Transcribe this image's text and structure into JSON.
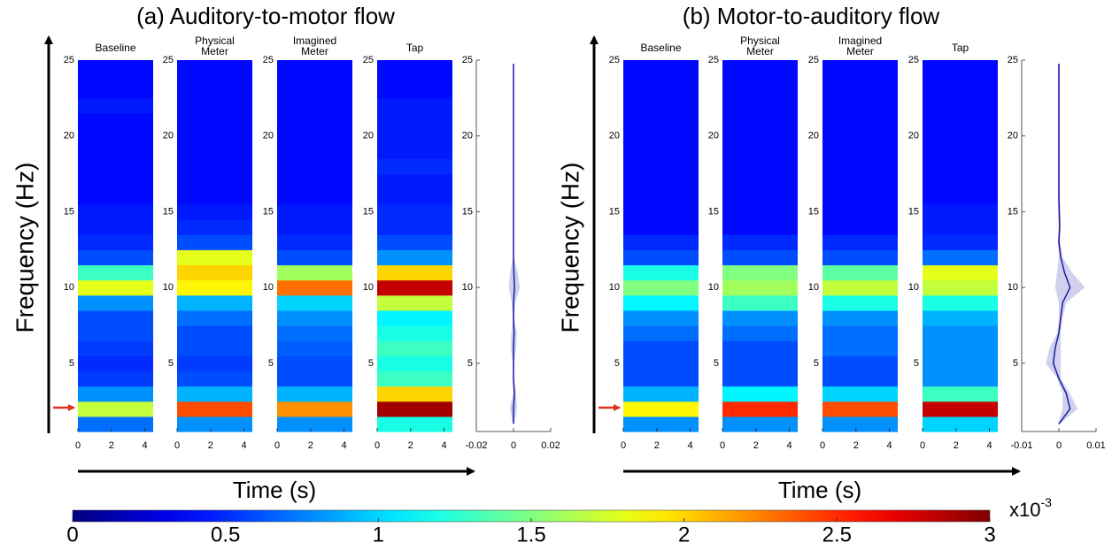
{
  "chart_data": [
    {
      "type": "spectrogram",
      "title": "(a) Auditory-to-motor flow",
      "y_label": "Frequency (Hz)",
      "x_label": "Time (s)",
      "ylim": [
        0.5,
        25
      ],
      "yticks": [
        5,
        10,
        15,
        20,
        25
      ],
      "xlim": [
        0,
        4.5
      ],
      "xticks": [
        0,
        2,
        4
      ],
      "y_bins": [
        0.5,
        1.5,
        2.5,
        3.5,
        4.5,
        5.5,
        6.5,
        7.5,
        8.5,
        9.5,
        10.5,
        11.5,
        12.5,
        13.5,
        14.5,
        15.5,
        16.5,
        17.5,
        18.5,
        19.5,
        20.5,
        21.5,
        22.5,
        23.5,
        24.5,
        25
      ],
      "subplots": [
        {
          "title": [
            "Baseline"
          ],
          "values": [
            0.7,
            1.7,
            0.8,
            0.55,
            0.5,
            0.55,
            0.6,
            0.6,
            0.8,
            1.8,
            1.3,
            0.6,
            0.5,
            0.45,
            0.45,
            0.4,
            0.4,
            0.4,
            0.4,
            0.4,
            0.4,
            0.45,
            0.4,
            0.4,
            0.4
          ]
        },
        {
          "title": [
            "Physical",
            "Meter"
          ],
          "values": [
            0.8,
            2.4,
            0.9,
            0.6,
            0.55,
            0.6,
            0.6,
            0.7,
            0.9,
            1.9,
            2.0,
            1.8,
            0.6,
            0.5,
            0.45,
            0.4,
            0.4,
            0.4,
            0.4,
            0.4,
            0.4,
            0.4,
            0.4,
            0.4,
            0.4
          ]
        },
        {
          "title": [
            "Imagined",
            "Meter"
          ],
          "values": [
            0.8,
            2.2,
            0.9,
            0.6,
            0.6,
            0.65,
            0.7,
            0.8,
            1.0,
            2.3,
            1.6,
            0.6,
            0.5,
            0.45,
            0.45,
            0.4,
            0.4,
            0.4,
            0.4,
            0.4,
            0.4,
            0.4,
            0.4,
            0.4,
            0.4
          ]
        },
        {
          "title": [
            "Tap"
          ],
          "values": [
            1.2,
            2.9,
            2.0,
            1.3,
            1.2,
            1.3,
            1.2,
            1.1,
            1.7,
            2.8,
            2.0,
            0.8,
            0.6,
            0.5,
            0.5,
            0.45,
            0.45,
            0.5,
            0.45,
            0.45,
            0.45,
            0.45,
            0.4,
            0.4,
            0.4
          ]
        }
      ],
      "profile": {
        "xlim": [
          -0.02,
          0.02
        ],
        "xticks": [
          -0.02,
          0,
          0.02
        ],
        "values": [
          0,
          0,
          0.0005,
          0,
          0,
          0,
          0.0003,
          0,
          0,
          0.0005,
          0.0002,
          0,
          0,
          0,
          0,
          0,
          0,
          0,
          0,
          0,
          0,
          0,
          0,
          0,
          0
        ],
        "spread": [
          0.0003,
          0.002,
          0.0008,
          0.0003,
          0.0003,
          0.0015,
          0.0015,
          0.0003,
          0.001,
          0.003,
          0.002,
          0.0003,
          0.0003,
          0.0003,
          0.0003,
          0.0003,
          0.0003,
          0.0003,
          0.0003,
          0.0003,
          0.0003,
          0.0003,
          0.0003,
          0.0003,
          0.0003
        ],
        "color": "#1a1aa6"
      }
    },
    {
      "type": "spectrogram",
      "title": "(b) Motor-to-auditory flow",
      "y_label": "Frequency (Hz)",
      "x_label": "Time (s)",
      "ylim": [
        0.5,
        25
      ],
      "yticks": [
        5,
        10,
        15,
        20,
        25
      ],
      "xlim": [
        0,
        4.5
      ],
      "xticks": [
        0,
        2,
        4
      ],
      "y_bins": [
        0.5,
        1.5,
        2.5,
        3.5,
        4.5,
        5.5,
        6.5,
        7.5,
        8.5,
        9.5,
        10.5,
        11.5,
        12.5,
        13.5,
        14.5,
        15.5,
        16.5,
        17.5,
        18.5,
        19.5,
        20.5,
        21.5,
        22.5,
        23.5,
        24.5,
        25
      ],
      "subplots": [
        {
          "title": [
            "Baseline"
          ],
          "values": [
            0.8,
            1.9,
            0.9,
            0.6,
            0.6,
            0.6,
            0.7,
            0.8,
            1.1,
            1.5,
            1.2,
            0.6,
            0.5,
            0.4,
            0.4,
            0.4,
            0.4,
            0.4,
            0.4,
            0.4,
            0.4,
            0.4,
            0.4,
            0.4,
            0.4
          ]
        },
        {
          "title": [
            "Physical",
            "Meter"
          ],
          "values": [
            0.8,
            2.5,
            1.1,
            0.6,
            0.6,
            0.6,
            0.7,
            0.8,
            1.3,
            1.6,
            1.5,
            0.6,
            0.5,
            0.4,
            0.4,
            0.4,
            0.4,
            0.4,
            0.4,
            0.4,
            0.4,
            0.4,
            0.4,
            0.4,
            0.4
          ]
        },
        {
          "title": [
            "Imagined",
            "Meter"
          ],
          "values": [
            0.8,
            2.4,
            1.0,
            0.6,
            0.6,
            0.7,
            0.7,
            0.8,
            1.2,
            1.7,
            1.4,
            0.6,
            0.5,
            0.4,
            0.4,
            0.4,
            0.4,
            0.4,
            0.4,
            0.4,
            0.4,
            0.4,
            0.4,
            0.4,
            0.4
          ]
        },
        {
          "title": [
            "Tap"
          ],
          "values": [
            1.0,
            2.8,
            1.3,
            0.8,
            0.8,
            0.8,
            0.8,
            0.9,
            1.2,
            1.7,
            1.8,
            0.7,
            0.5,
            0.45,
            0.45,
            0.4,
            0.4,
            0.4,
            0.4,
            0.4,
            0.4,
            0.4,
            0.4,
            0.4,
            0.4
          ]
        }
      ],
      "profile": {
        "xlim": [
          -0.01,
          0.01
        ],
        "xticks": [
          -0.01,
          0,
          0.01
        ],
        "values": [
          0,
          0.003,
          0.002,
          0,
          -0.0015,
          -0.001,
          0,
          0.0005,
          0.001,
          0.003,
          0.0015,
          0.0005,
          0,
          0.0002,
          0.0001,
          0,
          0,
          0,
          0,
          0,
          0,
          0,
          0,
          0,
          0
        ],
        "spread": [
          0.0003,
          0.002,
          0.001,
          0.0005,
          0.002,
          0.0015,
          0.0005,
          0.0005,
          0.001,
          0.004,
          0.002,
          0.0005,
          0.0003,
          0.0003,
          0.0003,
          0.0003,
          0.0003,
          0.0003,
          0.0003,
          0.0003,
          0.0003,
          0.0003,
          0.0003,
          0.0003,
          0.0003
        ],
        "color": "#1a1aa6"
      }
    }
  ],
  "colorbar": {
    "clim": [
      0,
      3
    ],
    "ticks": [
      0,
      0.5,
      1,
      1.5,
      2,
      2.5,
      3
    ],
    "multiplier": {
      "base": "x10",
      "exponent": "-3"
    }
  }
}
